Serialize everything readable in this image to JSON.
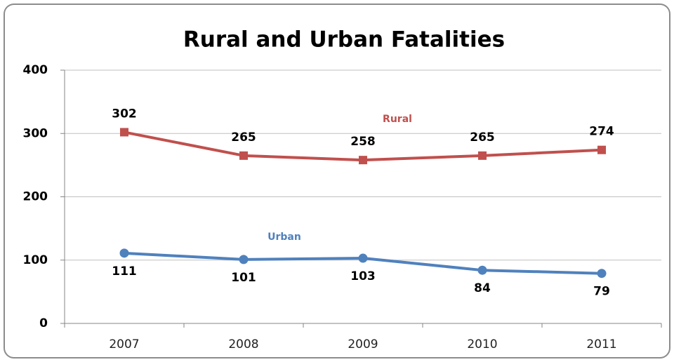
{
  "chart_data": {
    "type": "line",
    "title": "Rural and Urban Fatalities",
    "categories": [
      "2007",
      "2008",
      "2009",
      "2010",
      "2011"
    ],
    "series": [
      {
        "name": "Rural",
        "color": "#c0504d",
        "marker": "square",
        "values": [
          302,
          265,
          258,
          265,
          274
        ]
      },
      {
        "name": "Urban",
        "color": "#4f81bd",
        "marker": "circle",
        "values": [
          111,
          101,
          103,
          84,
          79
        ]
      }
    ],
    "ylim": [
      0,
      400
    ],
    "yticks": [
      0,
      100,
      200,
      300,
      400
    ],
    "grid": true
  }
}
